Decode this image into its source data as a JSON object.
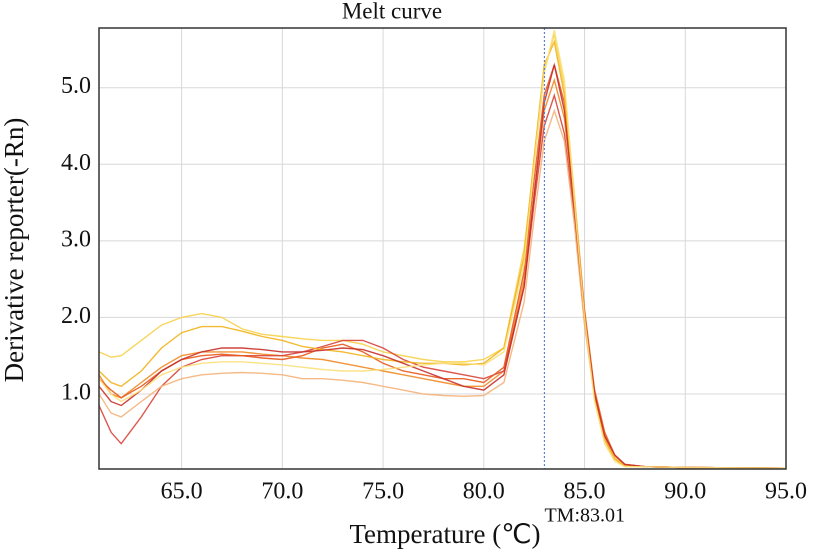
{
  "chart_data": {
    "type": "line",
    "title": "Melt curve",
    "x_label": "Temperature (℃)",
    "y_label": "Derivative reporter(-Rn)",
    "x": [
      60.9,
      61.5,
      62,
      63,
      64,
      65,
      66,
      67,
      68,
      69,
      70,
      71,
      72,
      73,
      74,
      75,
      76,
      77,
      78,
      79,
      80,
      81,
      82,
      82.5,
      83,
      83.5,
      84,
      84.5,
      85,
      85.5,
      86,
      86.5,
      87,
      88,
      90,
      95
    ],
    "series": [
      {
        "color": "#f08a24",
        "values": [
          1.25,
          1.0,
          0.95,
          1.15,
          1.35,
          1.5,
          1.55,
          1.55,
          1.55,
          1.52,
          1.5,
          1.47,
          1.45,
          1.4,
          1.35,
          1.3,
          1.25,
          1.2,
          1.15,
          1.1,
          1.1,
          1.3,
          2.5,
          3.6,
          4.7,
          5.1,
          4.6,
          3.4,
          2.0,
          1.0,
          0.45,
          0.2,
          0.08,
          0.05,
          0.04,
          0.03
        ]
      },
      {
        "color": "#f7d04a",
        "values": [
          1.55,
          1.48,
          1.5,
          1.7,
          1.9,
          2.0,
          2.05,
          2.0,
          1.85,
          1.78,
          1.75,
          1.72,
          1.7,
          1.7,
          1.65,
          1.55,
          1.5,
          1.45,
          1.42,
          1.42,
          1.45,
          1.6,
          2.9,
          4.0,
          5.2,
          5.7,
          5.0,
          3.6,
          2.1,
          1.0,
          0.4,
          0.15,
          0.06,
          0.05,
          0.04,
          0.03
        ]
      },
      {
        "color": "#d9443a",
        "values": [
          0.85,
          0.5,
          0.35,
          0.7,
          1.1,
          1.35,
          1.45,
          1.5,
          1.5,
          1.5,
          1.5,
          1.55,
          1.62,
          1.7,
          1.7,
          1.6,
          1.45,
          1.35,
          1.3,
          1.25,
          1.2,
          1.3,
          2.4,
          3.5,
          4.5,
          4.9,
          4.4,
          3.3,
          2.0,
          1.0,
          0.45,
          0.2,
          0.08,
          0.05,
          0.04,
          0.03
        ]
      },
      {
        "color": "#e85a1c",
        "values": [
          1.2,
          1.05,
          0.95,
          1.1,
          1.3,
          1.45,
          1.5,
          1.52,
          1.5,
          1.47,
          1.45,
          1.5,
          1.6,
          1.65,
          1.55,
          1.4,
          1.3,
          1.25,
          1.2,
          1.2,
          1.15,
          1.35,
          2.6,
          3.8,
          4.9,
          5.3,
          4.8,
          3.5,
          2.1,
          1.05,
          0.5,
          0.2,
          0.08,
          0.05,
          0.04,
          0.03
        ]
      },
      {
        "color": "#f4b27a",
        "values": [
          1.0,
          0.75,
          0.7,
          0.9,
          1.1,
          1.2,
          1.25,
          1.27,
          1.28,
          1.27,
          1.25,
          1.2,
          1.2,
          1.18,
          1.15,
          1.1,
          1.05,
          1.0,
          0.98,
          0.97,
          0.98,
          1.15,
          2.2,
          3.3,
          4.3,
          4.7,
          4.3,
          3.2,
          1.9,
          0.95,
          0.42,
          0.18,
          0.07,
          0.05,
          0.04,
          0.03
        ]
      },
      {
        "color": "#f2b21c",
        "values": [
          1.3,
          1.15,
          1.1,
          1.3,
          1.6,
          1.8,
          1.88,
          1.88,
          1.82,
          1.75,
          1.7,
          1.62,
          1.58,
          1.55,
          1.5,
          1.45,
          1.42,
          1.4,
          1.4,
          1.38,
          1.4,
          1.6,
          2.8,
          4.1,
          5.3,
          5.6,
          4.9,
          3.4,
          2.0,
          0.95,
          0.4,
          0.15,
          0.06,
          0.05,
          0.04,
          0.03
        ]
      },
      {
        "color": "#c8302a",
        "values": [
          1.1,
          0.9,
          0.85,
          1.05,
          1.3,
          1.45,
          1.55,
          1.6,
          1.6,
          1.58,
          1.55,
          1.55,
          1.57,
          1.6,
          1.58,
          1.5,
          1.4,
          1.3,
          1.2,
          1.1,
          1.05,
          1.25,
          2.4,
          3.6,
          4.8,
          5.3,
          4.7,
          3.4,
          2.0,
          1.0,
          0.45,
          0.2,
          0.08,
          0.05,
          0.04,
          0.03
        ]
      },
      {
        "color": "#f9e07a",
        "values": [
          1.2,
          1.0,
          0.9,
          1.05,
          1.25,
          1.35,
          1.4,
          1.42,
          1.42,
          1.4,
          1.38,
          1.35,
          1.32,
          1.3,
          1.3,
          1.32,
          1.35,
          1.38,
          1.4,
          1.4,
          1.38,
          1.55,
          2.7,
          4.0,
          5.2,
          5.75,
          5.1,
          3.5,
          2.0,
          0.9,
          0.35,
          0.12,
          0.05,
          0.05,
          0.04,
          0.03
        ]
      }
    ],
    "xlim": [
      60.9,
      95
    ],
    "ylim": [
      0.02,
      5.78
    ],
    "xticks": [
      {
        "value": 65,
        "label": "65.0"
      },
      {
        "value": 70,
        "label": "70.0"
      },
      {
        "value": 75,
        "label": "75.0"
      },
      {
        "value": 80,
        "label": "80.0"
      },
      {
        "value": 85,
        "label": "85.0"
      },
      {
        "value": 90,
        "label": "90.0"
      },
      {
        "value": 95,
        "label": "95.0"
      }
    ],
    "yticks": [
      {
        "value": 1,
        "label": "1.0"
      },
      {
        "value": 2,
        "label": "2.0"
      },
      {
        "value": 3,
        "label": "3.0"
      },
      {
        "value": 4,
        "label": "4.0"
      },
      {
        "value": 5,
        "label": "5.0"
      }
    ],
    "grid": true,
    "annotation": {
      "text": "TM:83.01",
      "x": 83.01,
      "color": "#5b7fd1"
    }
  }
}
